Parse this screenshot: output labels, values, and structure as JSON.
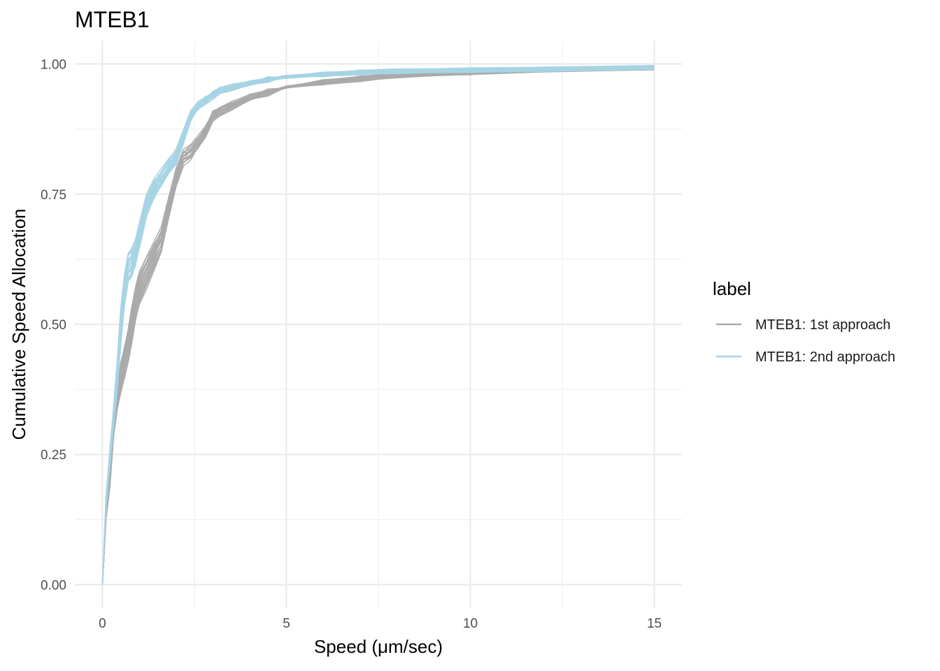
{
  "chart_data": {
    "type": "line",
    "title": "MTEB1",
    "xlabel": "Speed (μm/sec)",
    "ylabel": "Cumulative Speed Allocation",
    "xlim": [
      -0.75,
      15.75
    ],
    "ylim": [
      -0.045,
      1.045
    ],
    "x_ticks": [
      0,
      5,
      10,
      15
    ],
    "x_tick_labels": [
      "0",
      "5",
      "10",
      "15"
    ],
    "y_ticks": [
      0,
      0.25,
      0.5,
      0.75,
      1.0
    ],
    "y_tick_labels": [
      "0.00",
      "0.25",
      "0.50",
      "0.75",
      "1.00"
    ],
    "grid": true,
    "legend": {
      "title": "label",
      "position": "right"
    },
    "series": [
      {
        "name": "MTEB1: 1st approach",
        "color": "#aaaaaa",
        "replicates": 20,
        "x": [
          0,
          0.1,
          0.2,
          0.3,
          0.4,
          0.5,
          0.6,
          0.7,
          0.8,
          0.9,
          1.0,
          1.2,
          1.4,
          1.6,
          1.8,
          2.0,
          2.2,
          2.4,
          2.6,
          2.8,
          3.0,
          3.2,
          3.5,
          4.0,
          4.5,
          5.0,
          6.0,
          7.0,
          8.0,
          10.0,
          12.0,
          15.0
        ],
        "values": [
          0,
          0.14,
          0.2,
          0.3,
          0.36,
          0.4,
          0.43,
          0.46,
          0.5,
          0.54,
          0.57,
          0.6,
          0.63,
          0.66,
          0.72,
          0.78,
          0.82,
          0.83,
          0.85,
          0.87,
          0.9,
          0.91,
          0.92,
          0.935,
          0.945,
          0.955,
          0.965,
          0.972,
          0.978,
          0.984,
          0.989,
          0.992
        ]
      },
      {
        "name": "MTEB1: 2nd approach",
        "color": "#a6d4e4",
        "replicates": 20,
        "x": [
          0,
          0.1,
          0.2,
          0.3,
          0.4,
          0.5,
          0.6,
          0.7,
          0.8,
          0.9,
          1.0,
          1.2,
          1.4,
          1.6,
          1.8,
          2.0,
          2.2,
          2.4,
          2.6,
          2.8,
          3.0,
          3.2,
          3.5,
          4.0,
          4.5,
          5.0,
          6.0,
          7.0,
          8.0,
          10.0,
          12.0,
          15.0
        ],
        "values": [
          0,
          0.16,
          0.24,
          0.32,
          0.4,
          0.5,
          0.57,
          0.61,
          0.62,
          0.64,
          0.67,
          0.73,
          0.76,
          0.78,
          0.8,
          0.82,
          0.86,
          0.9,
          0.92,
          0.93,
          0.94,
          0.95,
          0.955,
          0.962,
          0.97,
          0.975,
          0.98,
          0.984,
          0.986,
          0.988,
          0.99,
          0.993
        ]
      }
    ]
  }
}
